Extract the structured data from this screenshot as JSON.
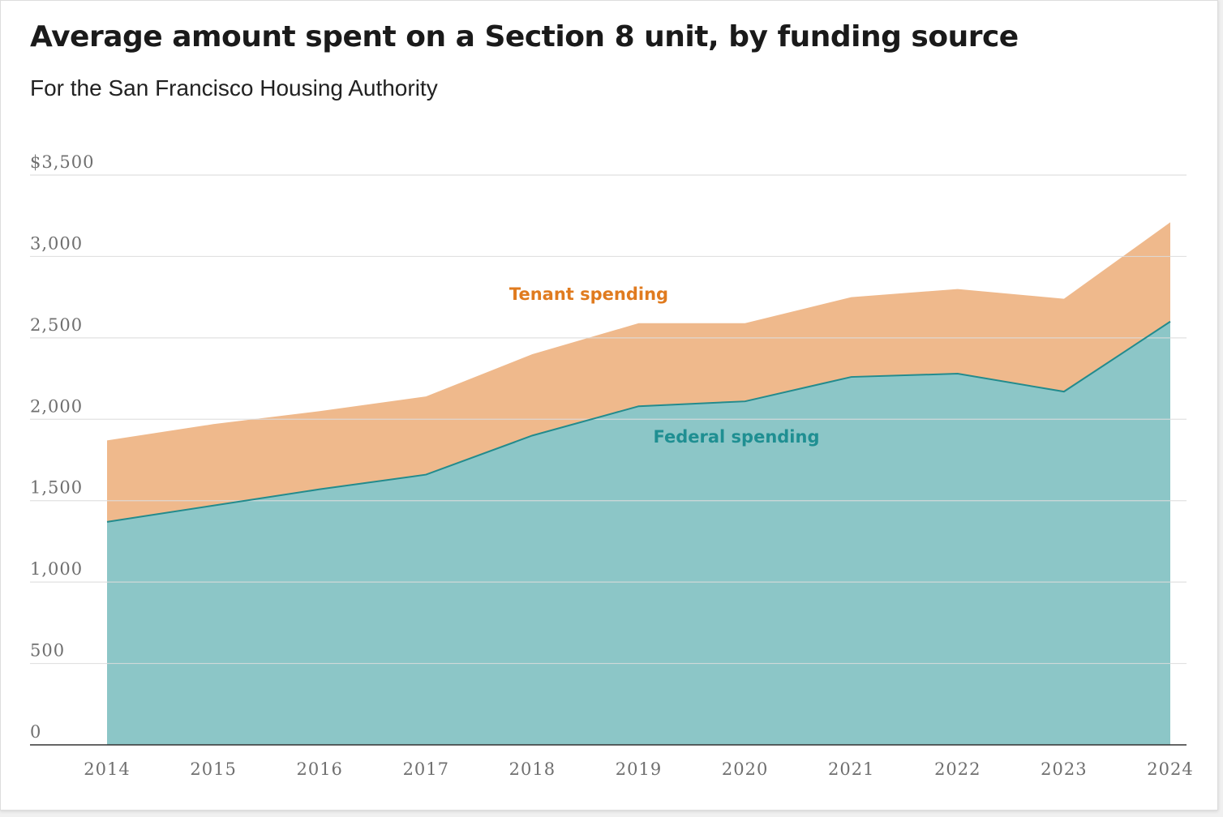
{
  "header": {
    "title": "Average amount spent on a Section 8 unit, by funding source",
    "subtitle": "For the San Francisco Housing Authority"
  },
  "colors": {
    "tenant_fill": "#efb98c",
    "federal_fill": "#8cc6c7",
    "federal_line": "#238b8d",
    "tenant_label": "#e07b1f",
    "federal_label": "#1f8f92",
    "grid": "#dcdcdc",
    "baseline": "#333333"
  },
  "chart_data": {
    "type": "area",
    "stacked": true,
    "title": "Average amount spent on a Section 8 unit, by funding source",
    "subtitle": "For the San Francisco Housing Authority",
    "x": [
      2014,
      2015,
      2016,
      2017,
      2018,
      2019,
      2020,
      2021,
      2022,
      2023,
      2024
    ],
    "series": [
      {
        "name": "Federal spending",
        "values": [
          1370,
          1470,
          1570,
          1660,
          1900,
          2080,
          2110,
          2260,
          2280,
          2170,
          2600
        ]
      },
      {
        "name": "Tenant spending",
        "values": [
          500,
          500,
          480,
          480,
          500,
          510,
          480,
          490,
          520,
          570,
          610
        ]
      }
    ],
    "totals": [
      1870,
      1970,
      2050,
      2140,
      2400,
      2590,
      2590,
      2750,
      2800,
      2740,
      3210
    ],
    "ylim": [
      0,
      3500
    ],
    "yticks": [
      0,
      500,
      1000,
      1500,
      2000,
      2500,
      3000,
      3500
    ],
    "ytick_labels": [
      "0",
      "500",
      "1,000",
      "1,500",
      "2,000",
      "2,500",
      "3,000",
      "$3,500"
    ],
    "xtick_labels": [
      "2014",
      "2015",
      "2016",
      "2017",
      "2018",
      "2019",
      "2020",
      "2021",
      "2022",
      "2023",
      "2024"
    ],
    "grid": true,
    "annotations": [
      "Tenant spending",
      "Federal spending"
    ]
  }
}
